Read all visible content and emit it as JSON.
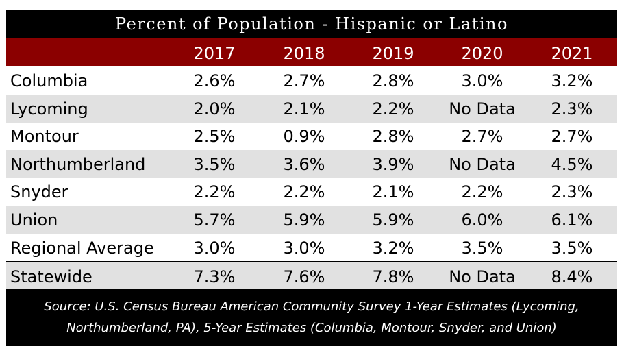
{
  "chart_data": {
    "type": "table",
    "title": "Percent of Population - Hispanic or Latino",
    "columns": [
      "",
      "2017",
      "2018",
      "2019",
      "2020",
      "2021"
    ],
    "rows": [
      {
        "name": "Columbia",
        "values": [
          "2.6%",
          "2.7%",
          "2.8%",
          "3.0%",
          "3.2%"
        ]
      },
      {
        "name": "Lycoming",
        "values": [
          "2.0%",
          "2.1%",
          "2.2%",
          "No Data",
          "2.3%"
        ]
      },
      {
        "name": "Montour",
        "values": [
          "2.5%",
          "0.9%",
          "2.8%",
          "2.7%",
          "2.7%"
        ]
      },
      {
        "name": "Northumberland",
        "values": [
          "3.5%",
          "3.6%",
          "3.9%",
          "No Data",
          "4.5%"
        ]
      },
      {
        "name": "Snyder",
        "values": [
          "2.2%",
          "2.2%",
          "2.1%",
          "2.2%",
          "2.3%"
        ]
      },
      {
        "name": "Union",
        "values": [
          "5.7%",
          "5.9%",
          "5.9%",
          "6.0%",
          "6.1%"
        ]
      },
      {
        "name": "Regional Average",
        "values": [
          "3.0%",
          "3.0%",
          "3.2%",
          "3.5%",
          "3.5%"
        ]
      },
      {
        "name": "Statewide",
        "values": [
          "7.3%",
          "7.6%",
          "7.8%",
          "No Data",
          "8.4%"
        ]
      }
    ],
    "source_line1": "Source: U.S. Census Bureau American Community Survey 1-Year Estimates (Lycoming,",
    "source_line2": "Northumberland, PA), 5-Year Estimates (Columbia, Montour, Snyder, and Union)"
  },
  "colors": {
    "title_bg": "#000000",
    "header_bg": "#8b0000",
    "shade_row": "#e1e1e1",
    "footer_bg": "#000000"
  }
}
